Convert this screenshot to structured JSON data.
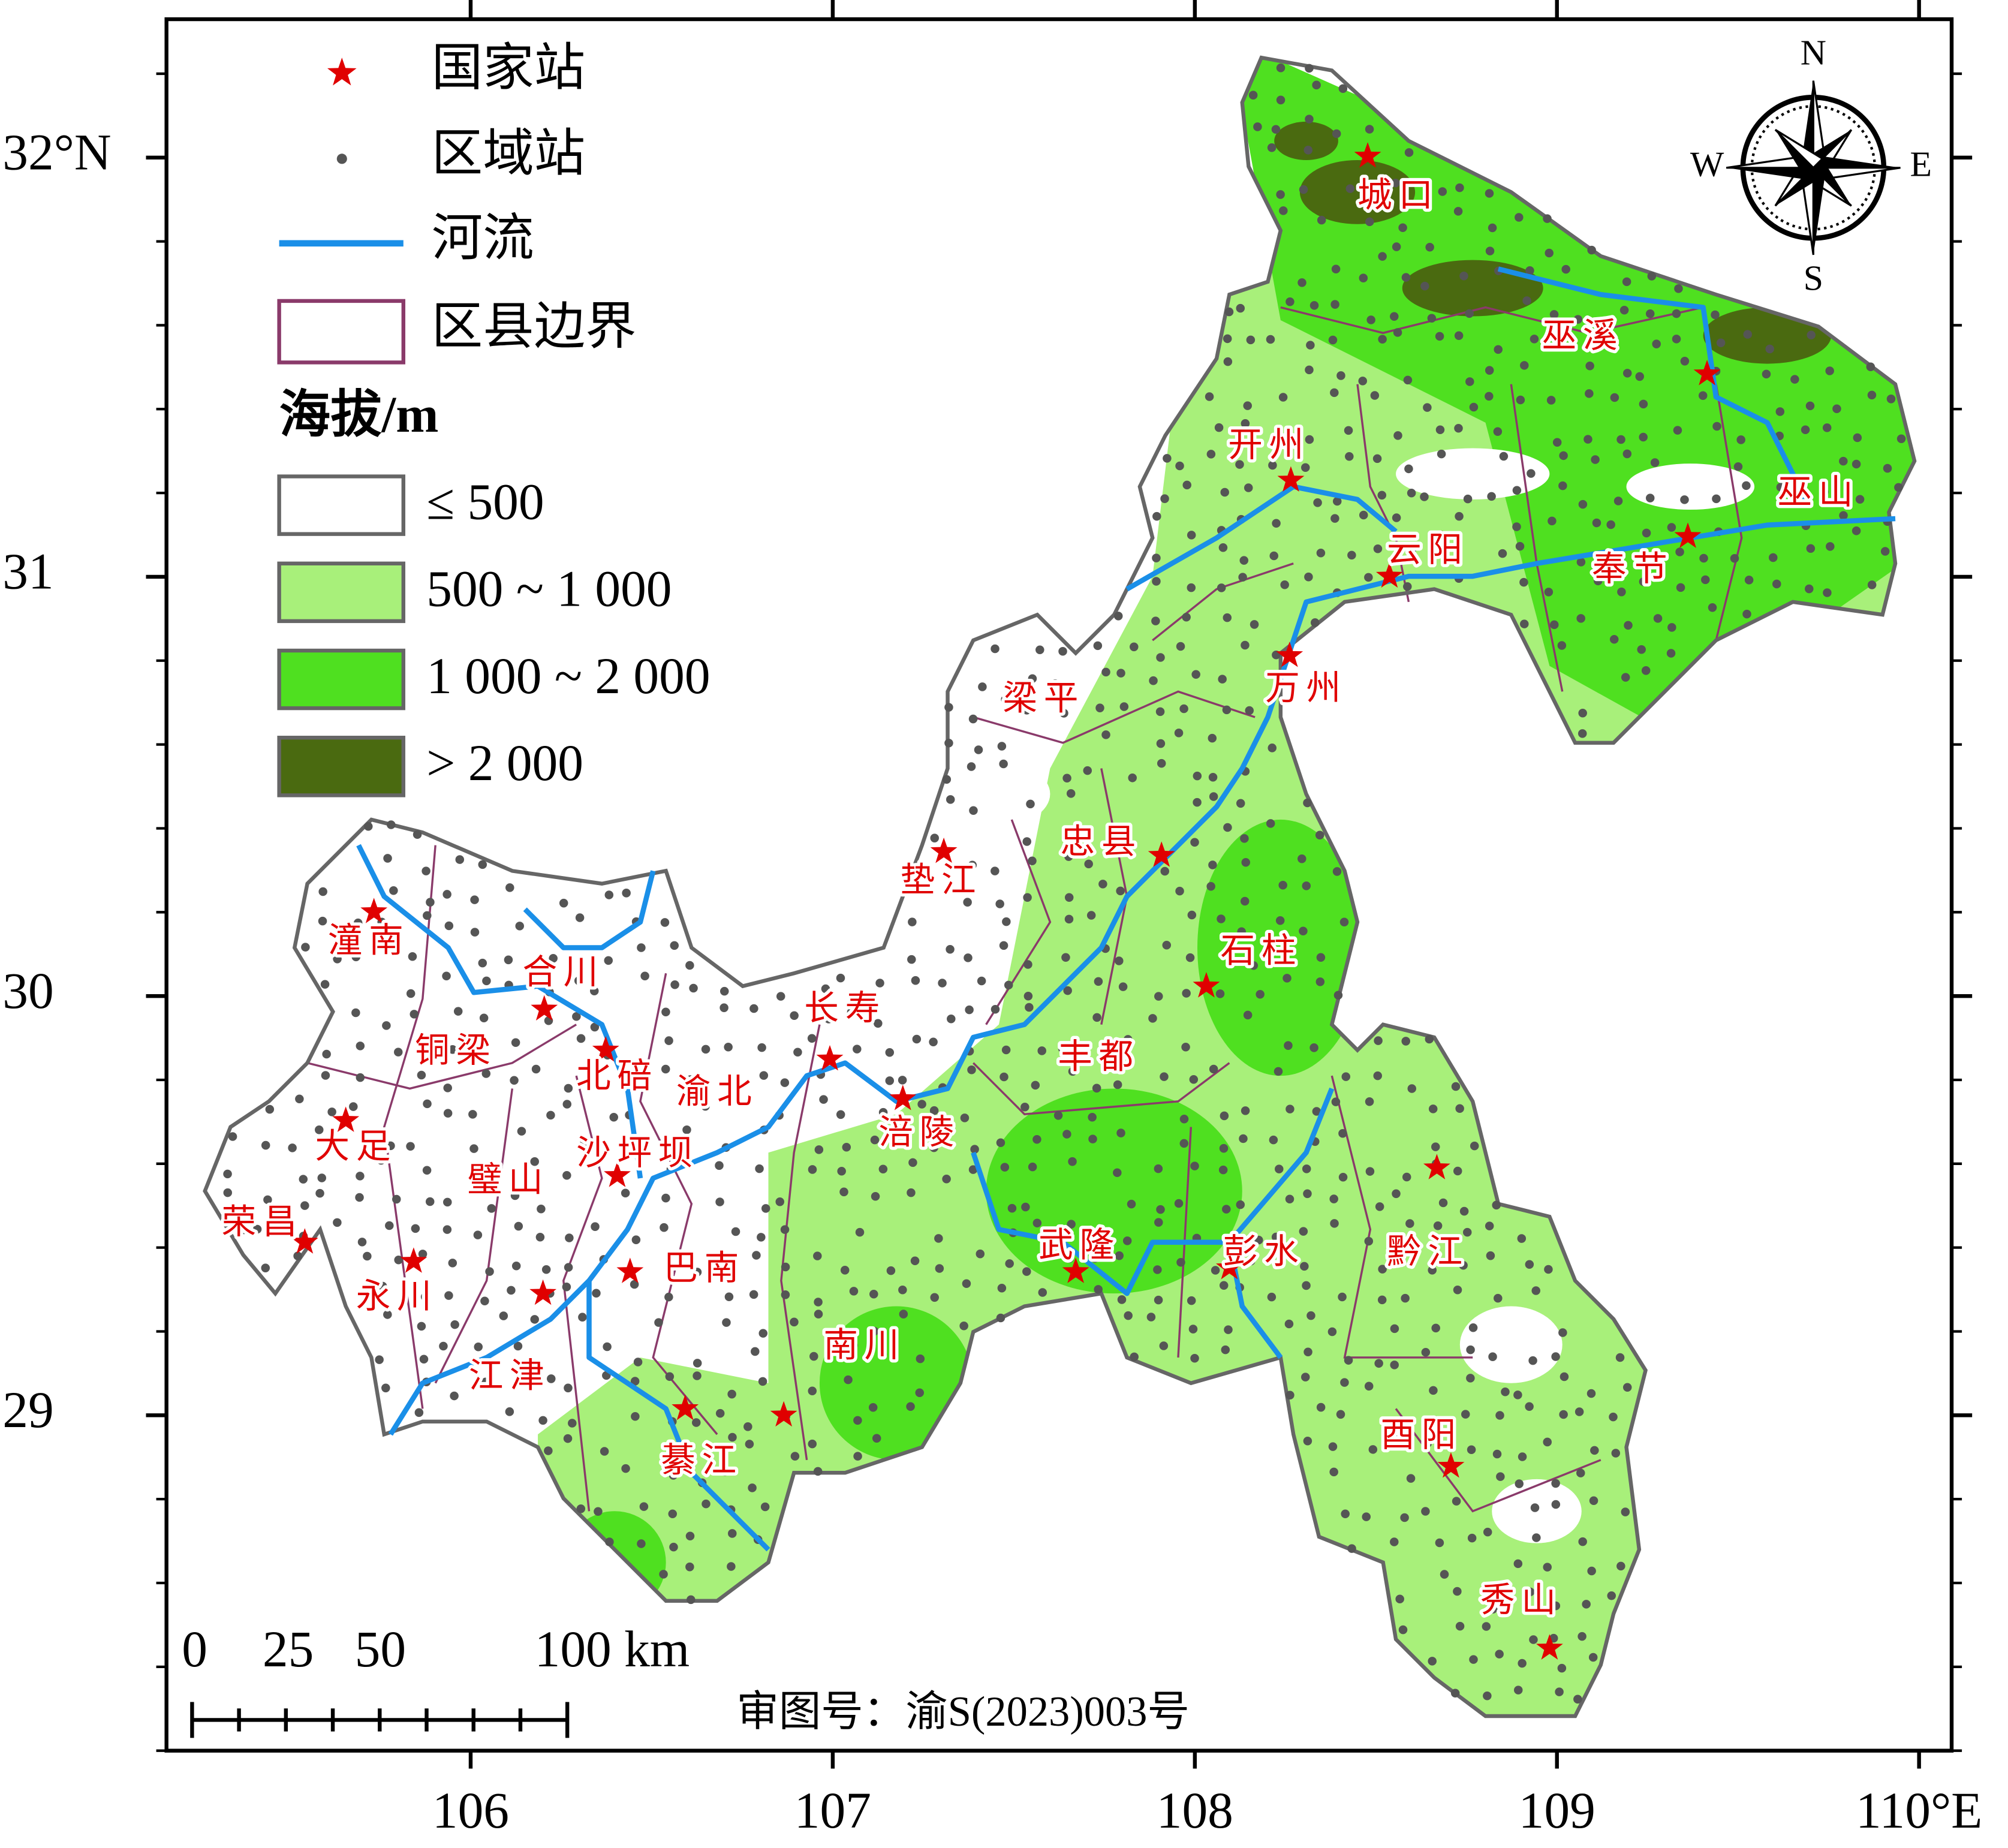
{
  "legend": {
    "items": [
      {
        "label": "国家站",
        "color": "#e00000"
      },
      {
        "label": "区域站",
        "color": "#555555"
      },
      {
        "label": "河流",
        "color": "#1a8fe8"
      },
      {
        "label": "区县边界",
        "color": "#8a3a6a"
      }
    ],
    "elevation_title": "海拔/m",
    "classes": [
      {
        "label": "≤ 500",
        "color": "#ffffff"
      },
      {
        "label": "500 ~ 1 000",
        "color": "#a8f07a"
      },
      {
        "label": "1 000 ~ 2 000",
        "color": "#4fe020"
      },
      {
        "label": "> 2 000",
        "color": "#4a6a10"
      }
    ]
  },
  "axes": {
    "lon_range": [
      105.16,
      110.09
    ],
    "lat_range": [
      28.2,
      32.33
    ],
    "lon_ticks": [
      106,
      107,
      108,
      109,
      {
        "value": 110,
        "label": "110°E"
      }
    ],
    "lat_ticks": [
      {
        "value": 32,
        "label": "32°N"
      },
      31,
      30,
      29
    ]
  },
  "compass": {
    "n": "N",
    "s": "S",
    "w": "W",
    "e": "E"
  },
  "scale_bar": {
    "labels": [
      "0",
      "25",
      "50",
      "100 km"
    ]
  },
  "note": "审图号：渝S(2023)003号",
  "districts": [
    "城口",
    "巫溪",
    "开州",
    "巫山",
    "云阳",
    "奉节",
    "万州",
    "梁平",
    "忠县",
    "垫江",
    "石柱",
    "长寿",
    "丰都",
    "涪陵",
    "潼南",
    "合川",
    "铜梁",
    "北碚",
    "渝北",
    "大足",
    "沙坪坝",
    "璧山",
    "荣昌",
    "永川",
    "巴南",
    "江津",
    "武隆",
    "彭水",
    "黔江",
    "南川",
    "綦江",
    "酉阳",
    "秀山"
  ]
}
